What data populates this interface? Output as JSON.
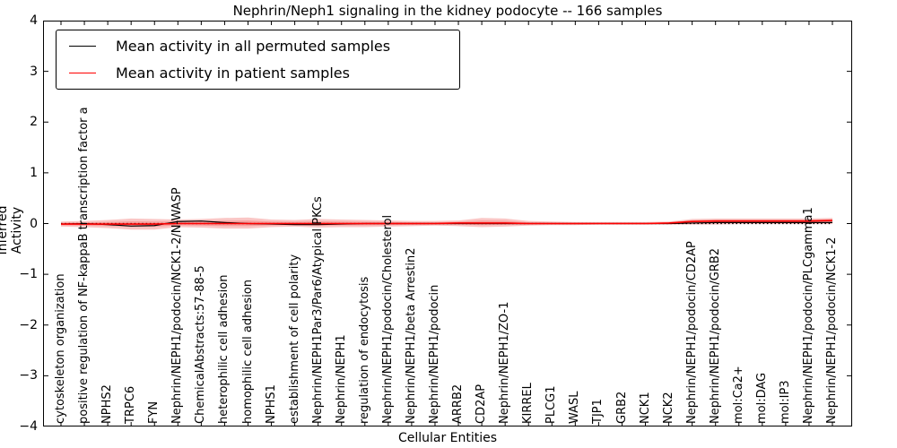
{
  "title": "Nephrin/Neph1 signaling in the kidney podocyte -- 166 samples",
  "axes": {
    "ylabel": "Inferred Activity",
    "xlabel": "Cellular Entities",
    "y_ticks": [
      "4",
      "3",
      "2",
      "1",
      "0",
      "−1",
      "−2",
      "−3",
      "−4"
    ]
  },
  "legend": {
    "items": [
      {
        "label": "Mean activity in all permuted samples",
        "color": "#000000"
      },
      {
        "label": "Mean activity in patient samples",
        "color": "#ff0000"
      }
    ]
  },
  "chart_data": {
    "type": "line",
    "title": "Nephrin/Neph1 signaling in the kidney podocyte -- 166 samples",
    "xlabel": "Cellular Entities",
    "ylabel": "Inferred Activity",
    "ylim": [
      -4,
      4
    ],
    "grid": false,
    "legend_position": "upper left",
    "categories": [
      "cytoskeleton organization",
      "positive regulation of NF-kappaB transcription factor a",
      "NPHS2",
      "TRPC6",
      "FYN",
      "Nephrin/NEPH1/podocin/NCK1-2/N-WASP",
      "ChemicalAbstracts:57-88-5",
      "heterophilic cell adhesion",
      "homophilic cell adhesion",
      "NPHS1",
      "establishment of cell polarity",
      "Nephrin/NEPH1Par3/Par6/Atypical PKCs",
      "Nephrin/NEPH1",
      "regulation of endocytosis",
      "Nephrin/NEPH1/podocin/Cholesterol",
      "Nephrin/NEPH1/beta Arrestin2",
      "Nephrin/NEPH1/podocin",
      "ARRB2",
      "CD2AP",
      "Nephrin/NEPH1/ZO-1",
      "KIRREL",
      "PLCG1",
      "WASL",
      "TJP1",
      "GRB2",
      "NCK1",
      "NCK2",
      "Nephrin/NEPH1/podocin/CD2AP",
      "Nephrin/NEPH1/podocin/GRB2",
      "mol:Ca2+",
      "mol:DAG",
      "mol:IP3",
      "Nephrin/NEPH1/podocin/PLCgamma1",
      "Nephrin/NEPH1/podocin/NCK1-2"
    ],
    "series": [
      {
        "name": "Mean activity in all permuted samples",
        "color": "#000000",
        "values": [
          -0.01,
          0.0,
          -0.02,
          -0.05,
          -0.04,
          0.04,
          0.05,
          0.02,
          0.0,
          -0.01,
          -0.02,
          -0.02,
          -0.01,
          0.0,
          0.0,
          0.0,
          0.0,
          0.0,
          0.0,
          0.0,
          0.0,
          0.0,
          0.0,
          0.0,
          0.0,
          0.0,
          0.0,
          0.01,
          0.02,
          0.02,
          0.02,
          0.02,
          0.02,
          0.02
        ]
      },
      {
        "name": "Mean activity in patient samples",
        "color": "#ff0000",
        "values": [
          -0.01,
          -0.01,
          -0.01,
          -0.01,
          -0.01,
          0.0,
          0.0,
          0.0,
          0.0,
          0.0,
          0.0,
          0.0,
          0.0,
          0.0,
          0.0,
          0.0,
          0.0,
          0.01,
          0.01,
          0.01,
          0.0,
          0.0,
          0.0,
          0.0,
          0.0,
          0.0,
          0.01,
          0.04,
          0.05,
          0.05,
          0.05,
          0.05,
          0.05,
          0.06
        ]
      }
    ],
    "band": {
      "name": "patient samples spread",
      "color": "#ef5350",
      "upper": [
        0.04,
        0.05,
        0.07,
        0.1,
        0.09,
        0.08,
        0.09,
        0.11,
        0.12,
        0.08,
        0.07,
        0.09,
        0.08,
        0.07,
        0.06,
        0.05,
        0.05,
        0.06,
        0.11,
        0.1,
        0.05,
        0.04,
        0.03,
        0.03,
        0.03,
        0.03,
        0.04,
        0.09,
        0.1,
        0.1,
        0.1,
        0.1,
        0.1,
        0.11
      ],
      "lower": [
        -0.06,
        -0.07,
        -0.09,
        -0.12,
        -0.12,
        -0.07,
        -0.08,
        -0.1,
        -0.1,
        -0.07,
        -0.06,
        -0.08,
        -0.07,
        -0.07,
        -0.06,
        -0.05,
        -0.04,
        -0.05,
        -0.07,
        -0.06,
        -0.04,
        -0.03,
        -0.03,
        -0.02,
        -0.02,
        -0.02,
        -0.02,
        -0.02,
        -0.02,
        -0.01,
        -0.01,
        -0.01,
        -0.01,
        -0.01
      ]
    },
    "baseline": {
      "y": 0,
      "style": "dotted",
      "color": "#000000"
    }
  }
}
